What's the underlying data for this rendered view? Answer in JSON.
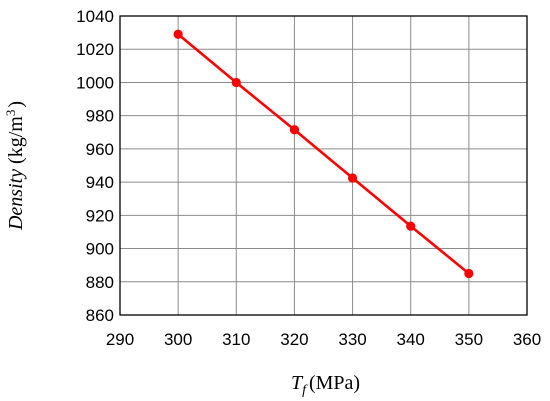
{
  "chart_data": {
    "type": "line",
    "x": [
      300,
      310,
      320,
      330,
      340,
      350
    ],
    "series": [
      {
        "values": [
          1029,
          1000,
          971.5,
          942.5,
          913.5,
          885
        ],
        "color": "#ff0000",
        "marker": "circle"
      }
    ],
    "xlim": [
      290,
      360
    ],
    "ylim": [
      860,
      1040
    ],
    "xticks": [
      290,
      300,
      310,
      320,
      330,
      340,
      350,
      360
    ],
    "yticks": [
      860,
      880,
      900,
      920,
      940,
      960,
      980,
      1000,
      1020,
      1040
    ],
    "xlabel": {
      "var": "T",
      "sub": "f",
      "unit": "(MPa)"
    },
    "ylabel": {
      "var": "Density",
      "unit": "(kg/m",
      "sup": "3",
      "close": ")"
    },
    "grid": true,
    "legend": false
  }
}
